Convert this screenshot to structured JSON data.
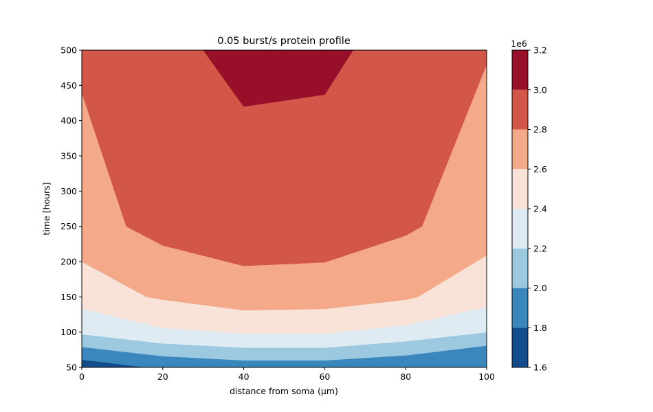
{
  "chart_data": {
    "type": "contourf",
    "title": "0.05 burst/s protein profile",
    "xlabel": "distance from soma (μm)",
    "ylabel": "time [hours]",
    "xlim": [
      0,
      100
    ],
    "ylim": [
      50,
      500
    ],
    "x_ticks": [
      "0",
      "20",
      "40",
      "60",
      "80",
      "100"
    ],
    "y_ticks": [
      "50",
      "100",
      "150",
      "200",
      "250",
      "300",
      "350",
      "400",
      "450",
      "500"
    ],
    "grid": false,
    "colorbar": {
      "multiplier": "1e6",
      "levels": [
        1.6,
        1.8,
        2.0,
        2.2,
        2.4,
        2.6,
        2.8,
        3.0,
        3.2
      ],
      "tick_labels": [
        "1.6",
        "1.8",
        "2.0",
        "2.2",
        "2.4",
        "2.6",
        "2.8",
        "3.0",
        "3.2"
      ],
      "colors": [
        "#134d8b",
        "#3a87bd",
        "#9dc9e0",
        "#deebf2",
        "#f9e2d7",
        "#f4a988",
        "#d25749",
        "#980f29"
      ]
    },
    "regions": [
      {
        "level_index": 0,
        "x": [
          0,
          0,
          16,
          100,
          100
        ],
        "y": [
          50,
          61,
          50,
          50,
          62
        ]
      },
      {
        "level_index": 1,
        "x": [
          0,
          20,
          40,
          60,
          80,
          100
        ],
        "y": [
          79,
          66,
          60,
          60,
          67,
          81
        ]
      },
      {
        "level_index": 2,
        "x": [
          0,
          20,
          40,
          60,
          80,
          100
        ],
        "y": [
          97,
          84,
          78,
          78,
          87,
          100
        ]
      },
      {
        "level_index": 3,
        "x": [
          0,
          20,
          40,
          60,
          80,
          100
        ],
        "y": [
          133,
          106,
          98,
          98,
          110,
          136
        ]
      },
      {
        "level_index": 4,
        "x": [
          0,
          16,
          20,
          40,
          60,
          80,
          83,
          100
        ],
        "y": [
          200,
          150,
          146,
          131,
          133,
          146,
          150,
          209
        ]
      },
      {
        "level_index": 5,
        "x": [
          0,
          11,
          20,
          40,
          60,
          80,
          84,
          100
        ],
        "y": [
          440,
          250,
          223,
          194,
          199,
          237,
          250,
          480
        ]
      },
      {
        "level_index": 6,
        "x": [
          30,
          40,
          60,
          67
        ],
        "y": [
          500,
          420,
          437,
          500
        ]
      }
    ]
  }
}
